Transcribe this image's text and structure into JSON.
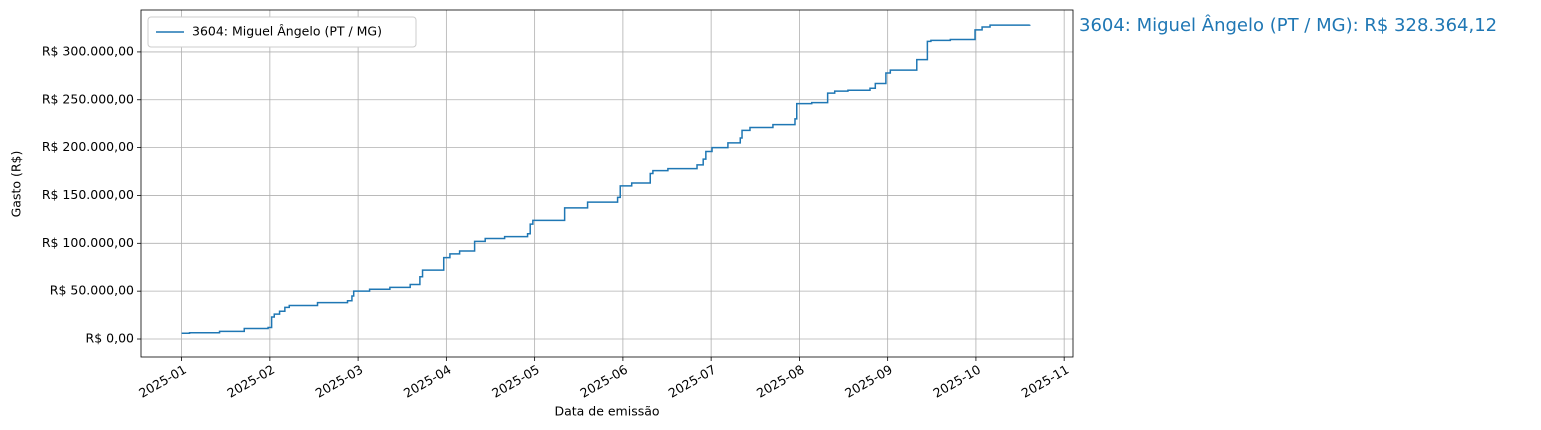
{
  "chart_data": {
    "type": "step",
    "ylabel": "Gasto (R$)",
    "xlabel": "Data de emissão",
    "annotation": "3604: Miguel Ângelo (PT / MG): R$ 328.364,12",
    "legend": "upper left",
    "grid": true,
    "x": [
      1.0,
      1.09,
      1.43,
      1.71,
      1.98,
      2.02,
      2.05,
      2.11,
      2.17,
      2.22,
      2.54,
      2.88,
      2.93,
      2.95,
      3.13,
      3.36,
      3.59,
      3.7,
      3.73,
      3.97,
      4.04,
      4.15,
      4.32,
      4.44,
      4.66,
      4.92,
      4.95,
      4.98,
      5.34,
      5.6,
      5.94,
      5.97,
      6.1,
      6.31,
      6.34,
      6.51,
      6.84,
      6.91,
      6.94,
      7.01,
      7.19,
      7.33,
      7.35,
      7.44,
      7.7,
      7.95,
      7.97,
      8.14,
      8.32,
      8.4,
      8.55,
      8.8,
      8.86,
      8.98,
      9.03,
      9.33,
      9.45,
      9.49,
      9.71,
      9.99,
      10.07,
      10.16,
      10.61
    ],
    "series": [
      {
        "name": "3604: Miguel Ângelo (PT / MG)",
        "color": "#1f77b4",
        "values": [
          6000,
          6500,
          8000,
          11000,
          12000,
          23000,
          26000,
          29000,
          33000,
          35000,
          38000,
          40000,
          45000,
          50000,
          52000,
          54000,
          57000,
          65000,
          72000,
          85000,
          89000,
          92000,
          102000,
          105000,
          107000,
          110000,
          120000,
          124000,
          137000,
          143000,
          148000,
          160000,
          163000,
          173000,
          176000,
          178000,
          182000,
          188000,
          196000,
          200000,
          205000,
          210000,
          218000,
          221000,
          224000,
          230000,
          246000,
          247000,
          257000,
          259000,
          260000,
          262000,
          267000,
          278000,
          281000,
          292000,
          311000,
          312000,
          313000,
          323000,
          326000,
          328000,
          328364.12
        ]
      }
    ],
    "xlim": [
      0.54,
      11.1
    ],
    "xticks": [
      {
        "value": 1,
        "label": "2025-01"
      },
      {
        "value": 2,
        "label": "2025-02"
      },
      {
        "value": 3,
        "label": "2025-03"
      },
      {
        "value": 4,
        "label": "2025-04"
      },
      {
        "value": 5,
        "label": "2025-05"
      },
      {
        "value": 6,
        "label": "2025-06"
      },
      {
        "value": 7,
        "label": "2025-07"
      },
      {
        "value": 8,
        "label": "2025-08"
      },
      {
        "value": 9,
        "label": "2025-09"
      },
      {
        "value": 10,
        "label": "2025-10"
      },
      {
        "value": 11,
        "label": "2025-11"
      }
    ],
    "ylim": [
      -18800,
      343800
    ],
    "yticks": [
      {
        "value": 0,
        "label": "R$ 0,00"
      },
      {
        "value": 50000,
        "label": "R$ 50.000,00"
      },
      {
        "value": 100000,
        "label": "R$ 100.000,00"
      },
      {
        "value": 150000,
        "label": "R$ 150.000,00"
      },
      {
        "value": 200000,
        "label": "R$ 200.000,00"
      },
      {
        "value": 250000,
        "label": "R$ 250.000,00"
      },
      {
        "value": 300000,
        "label": "R$ 300.000,00"
      }
    ]
  }
}
